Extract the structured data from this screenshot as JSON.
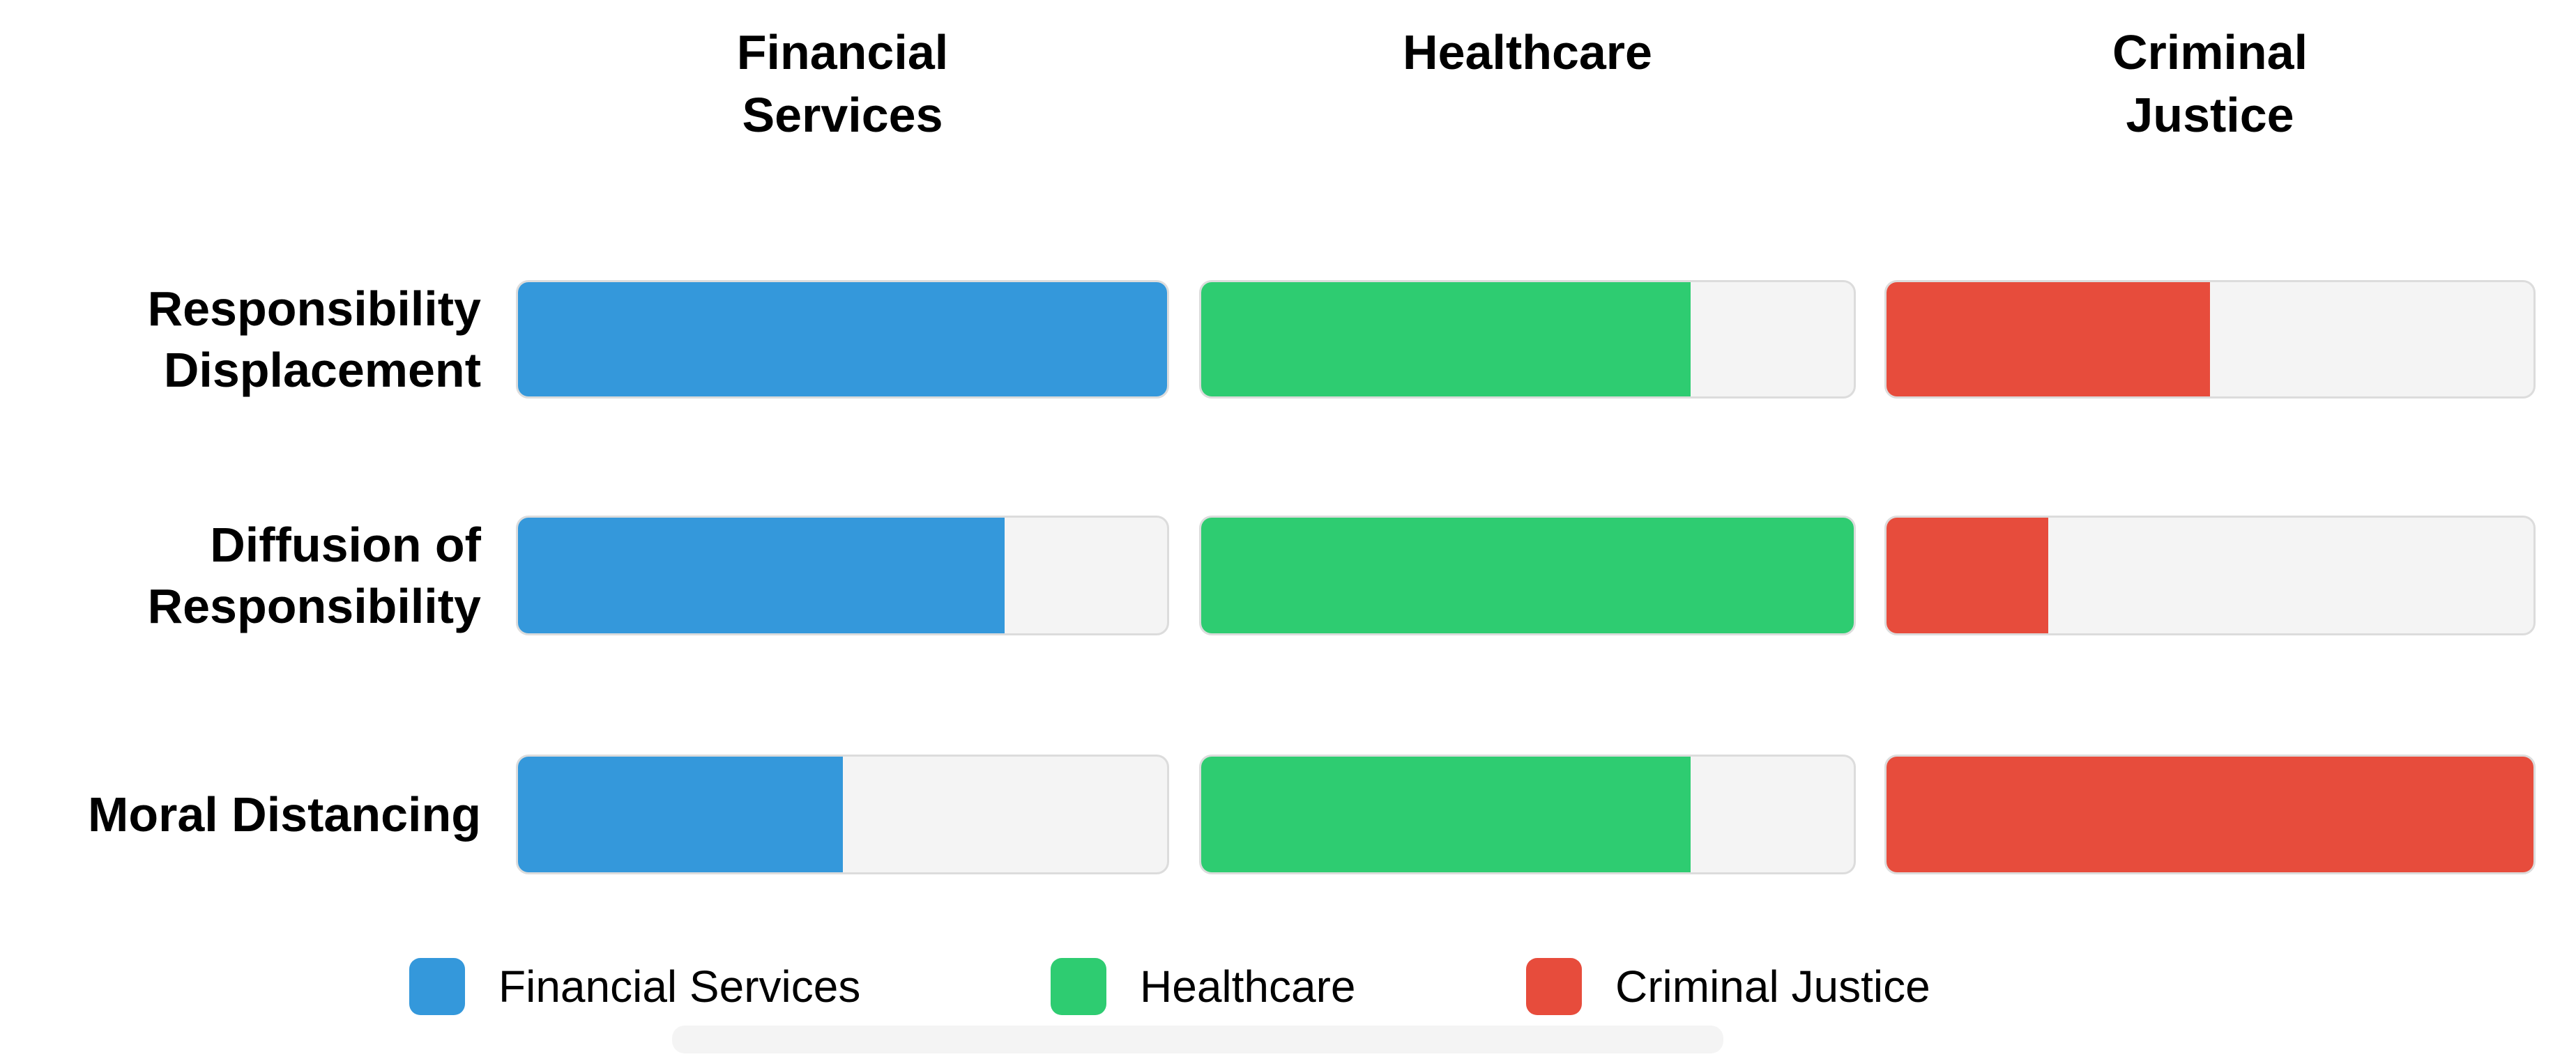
{
  "headers": [
    {
      "line1": "Financial",
      "line2": "Services"
    },
    {
      "line1": "Healthcare",
      "line2": ""
    },
    {
      "line1": "Criminal",
      "line2": "Justice"
    }
  ],
  "row_labels": [
    {
      "line1": "Responsibility",
      "line2": "Displacement"
    },
    {
      "line1": "Diffusion of",
      "line2": "Responsibility"
    },
    {
      "line1": "Moral Distancing",
      "line2": ""
    }
  ],
  "legend": {
    "items": [
      {
        "label": "Financial Services"
      },
      {
        "label": "Healthcare"
      },
      {
        "label": "Criminal Justice"
      }
    ]
  },
  "colors": {
    "financial_services": "#3498db",
    "healthcare": "#2ecc71",
    "criminal_justice": "#e74c3c",
    "track_background": "#f4f4f4",
    "track_border": "#dcdcdc",
    "text": "#000000"
  },
  "chart_data": {
    "type": "bar",
    "subtype": "horizontal-progress-grid",
    "title": "",
    "xlabel": "",
    "ylabel": "",
    "value_range": [
      0,
      100
    ],
    "grid": false,
    "legend_position": "bottom",
    "categories": [
      "Responsibility Displacement",
      "Diffusion of Responsibility",
      "Moral Distancing"
    ],
    "columns": [
      "Financial Services",
      "Healthcare",
      "Criminal Justice"
    ],
    "series": [
      {
        "name": "Financial Services",
        "color": "#3498db",
        "values_pct": [
          100,
          75,
          50
        ]
      },
      {
        "name": "Healthcare",
        "color": "#2ecc71",
        "values_pct": [
          75,
          100,
          75
        ]
      },
      {
        "name": "Criminal Justice",
        "color": "#e74c3c",
        "values_pct": [
          50,
          25,
          100
        ]
      }
    ]
  }
}
